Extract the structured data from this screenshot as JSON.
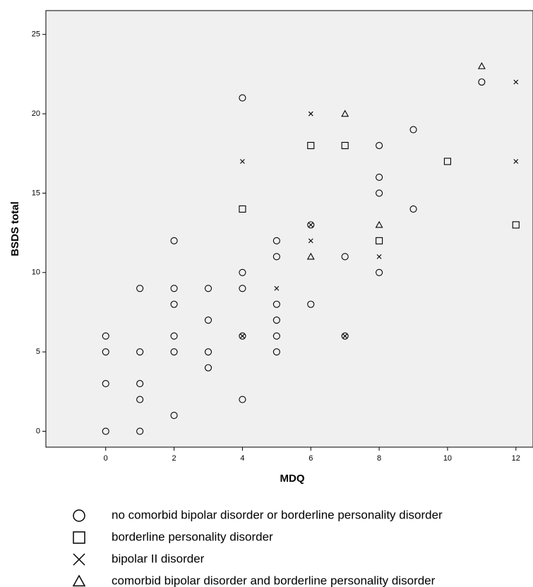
{
  "chart_data": {
    "type": "scatter",
    "x_label": "MDQ",
    "y_label": "BSDS total",
    "xlim": [
      -1.75,
      12.5
    ],
    "ylim": [
      -1.0,
      26.5
    ],
    "xticks": [
      0,
      2,
      4,
      6,
      8,
      10,
      12
    ],
    "yticks": [
      0,
      5,
      10,
      15,
      20,
      25
    ],
    "grid": false,
    "legend": "bottom",
    "series": [
      {
        "name": "no comorbid bipolar disorder or borderline personality disorder",
        "marker": "circle",
        "color": "#000000",
        "x": [
          0,
          0,
          0,
          0,
          1,
          1,
          1,
          1,
          1,
          2,
          2,
          2,
          2,
          2,
          2,
          3,
          3,
          3,
          3,
          4,
          4,
          4,
          4,
          4,
          5,
          5,
          5,
          5,
          5,
          5,
          6,
          6,
          7,
          7,
          8,
          8,
          8,
          8,
          9,
          9,
          11
        ],
        "values": [
          0,
          3,
          5,
          6,
          0,
          2,
          3,
          5,
          9,
          1,
          5,
          6,
          8,
          9,
          12,
          4,
          5,
          7,
          9,
          2,
          6,
          9,
          10,
          21,
          5,
          6,
          7,
          8,
          11,
          12,
          8,
          13,
          11,
          6,
          10,
          15,
          16,
          18,
          14,
          19,
          22
        ]
      },
      {
        "name": "borderline personality disorder",
        "marker": "square",
        "color": "#000000",
        "x": [
          4,
          6,
          7,
          8,
          10,
          12
        ],
        "values": [
          14,
          18,
          18,
          12,
          17,
          13
        ]
      },
      {
        "name": "bipolar II disorder",
        "marker": "cross",
        "color": "#000000",
        "x": [
          4,
          4,
          5,
          6,
          6,
          6,
          7,
          8,
          12,
          12
        ],
        "values": [
          17,
          6,
          9,
          12,
          13,
          20,
          6,
          11,
          17,
          22
        ]
      },
      {
        "name": "comorbid bipolar disorder and borderline personality disorder",
        "marker": "triangle",
        "color": "#000000",
        "x": [
          6,
          7,
          8,
          11
        ],
        "values": [
          11,
          20,
          13,
          23
        ]
      }
    ]
  }
}
